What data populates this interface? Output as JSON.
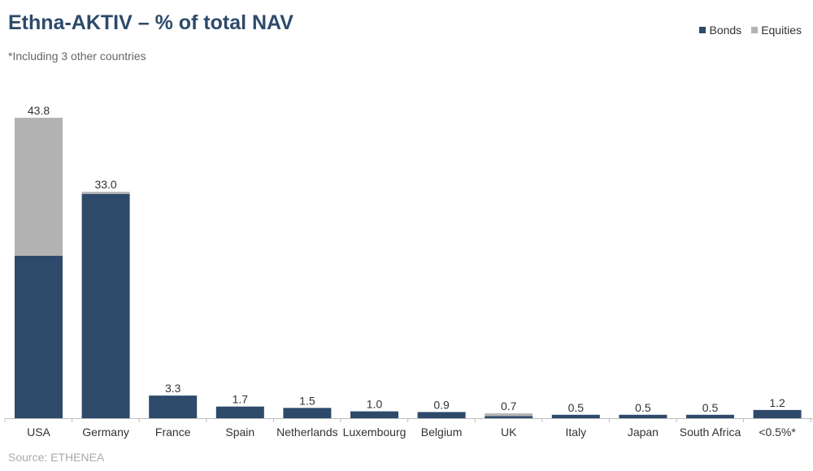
{
  "chart_data": {
    "type": "bar",
    "stacked": true,
    "title": "Ethna-AKTIV – % of total NAV",
    "subtitle": "*Including 3 other countries",
    "source": "Source: ETHENEA",
    "legend_position": "top-right",
    "grid": false,
    "categories": [
      "USA",
      "Germany",
      "France",
      "Spain",
      "Netherlands",
      "Luxembourg",
      "Belgium",
      "UK",
      "Italy",
      "Japan",
      "South Africa",
      "<0.5%*"
    ],
    "series": [
      {
        "name": "Bonds",
        "color": "#2d4a6a",
        "values": [
          23.7,
          32.7,
          3.3,
          1.7,
          1.5,
          1.0,
          0.9,
          0.3,
          0.5,
          0.5,
          0.5,
          1.2
        ]
      },
      {
        "name": "Equities",
        "color": "#b3b3b3",
        "values": [
          20.1,
          0.3,
          0.0,
          0.0,
          0.0,
          0.0,
          0.0,
          0.4,
          0.0,
          0.0,
          0.0,
          0.0
        ]
      }
    ],
    "totals": [
      "43.8",
      "33.0",
      "3.3",
      "1.7",
      "1.5",
      "1.0",
      "0.9",
      "0.7",
      "0.5",
      "0.5",
      "0.5",
      "1.2"
    ],
    "ylim": [
      0,
      43.8
    ]
  }
}
